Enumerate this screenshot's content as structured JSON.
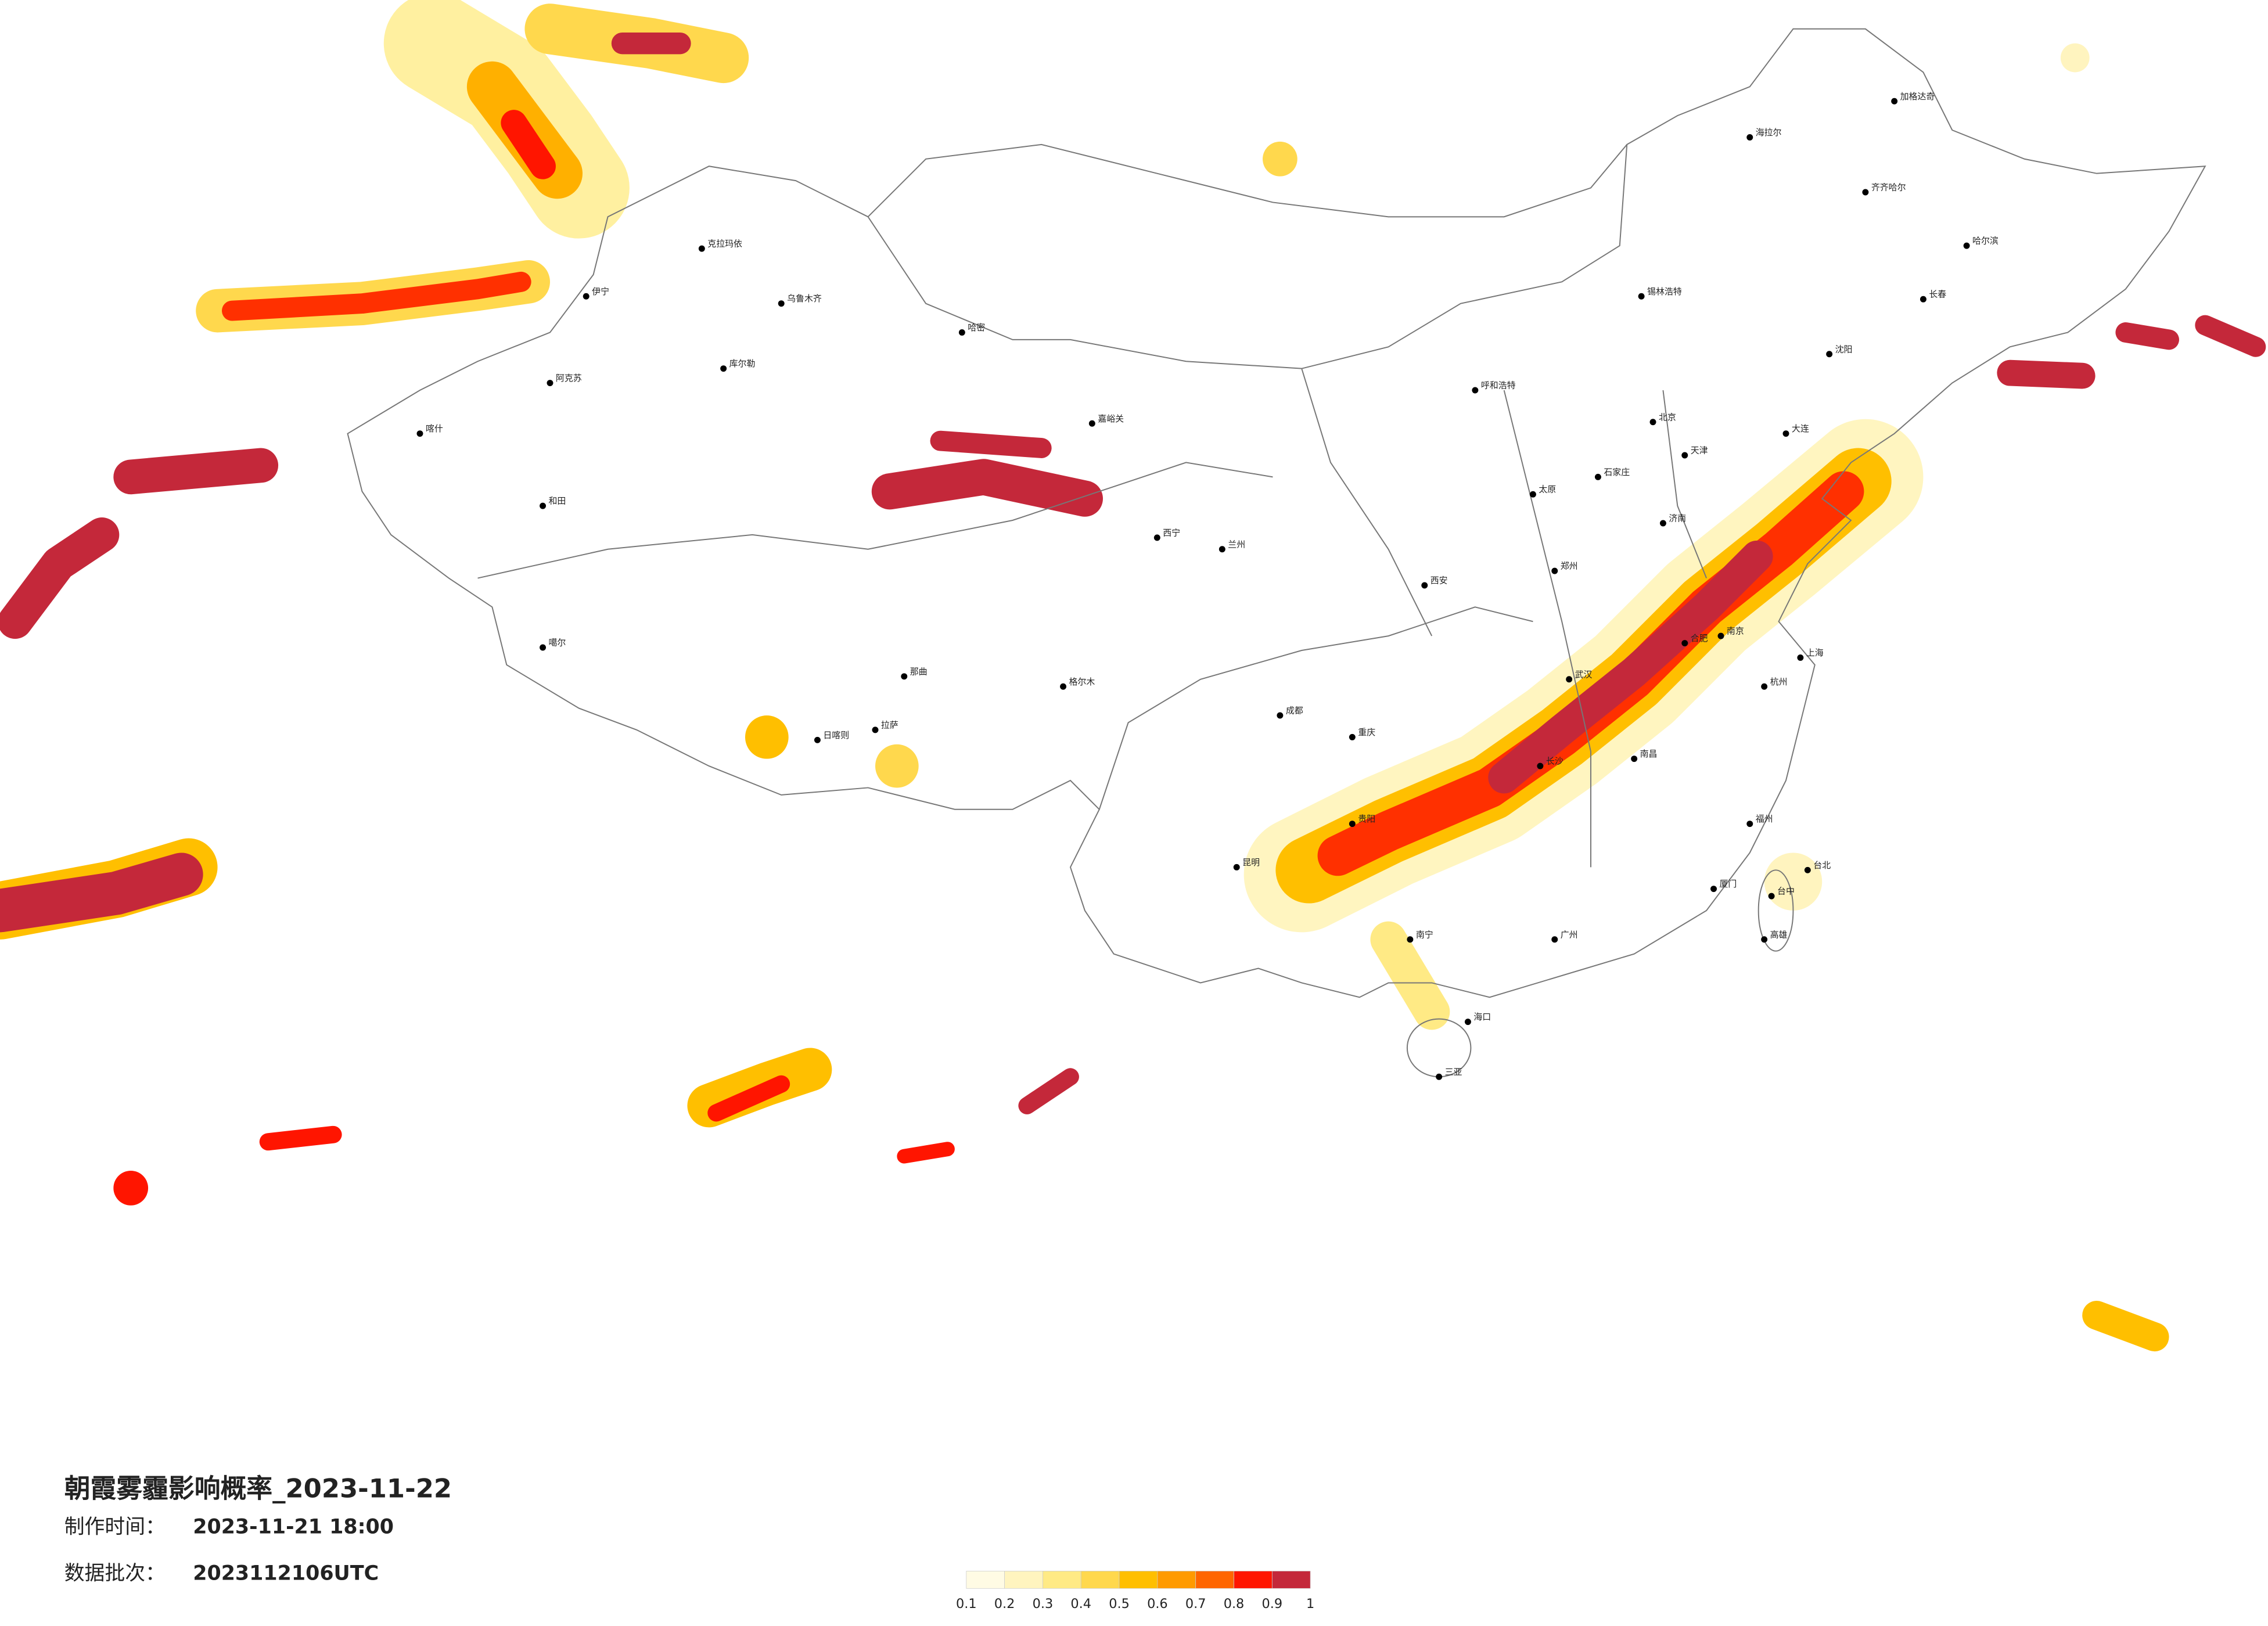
{
  "title": "朝霞雾霾影响概率_2023-11-22",
  "info": [
    {
      "label": "制作时间：",
      "value": "2023-11-21 18:00"
    },
    {
      "label": "数据批次：",
      "value": "2023112106UTC"
    }
  ],
  "colorbar": {
    "ticks": [
      0.1,
      0.2,
      0.3,
      0.4,
      0.5,
      0.6,
      0.7,
      0.8,
      0.9,
      1
    ],
    "colors": [
      "#fffbe4",
      "#fff4bf",
      "#ffea85",
      "#ffd84d",
      "#ffbf00",
      "#ff9a00",
      "#ff6500",
      "#ff1500",
      "#c4283a"
    ]
  },
  "cities": [
    "北京",
    "天津",
    "石家庄",
    "太原",
    "济南",
    "郑州",
    "西安",
    "兰州",
    "西宁",
    "呼和浩特",
    "哈尔滨",
    "长春",
    "沈阳",
    "大连",
    "上海",
    "南京",
    "杭州",
    "合肥",
    "武汉",
    "长沙",
    "南昌",
    "福州",
    "广州",
    "南宁",
    "海口",
    "昆明",
    "贵阳",
    "成都",
    "重庆",
    "拉萨",
    "乌鲁木齐",
    "克拉玛依",
    "伊宁",
    "阿克苏",
    "喀什",
    "和田",
    "噶尔",
    "日喀则",
    "格尔木",
    "那曲",
    "库尔勒",
    "哈密",
    "嘉峪关",
    "齐齐哈尔",
    "加格达奇",
    "海拉尔",
    "锡林浩特",
    "台北",
    "台中",
    "高雄",
    "三亚",
    "厦门"
  ]
}
